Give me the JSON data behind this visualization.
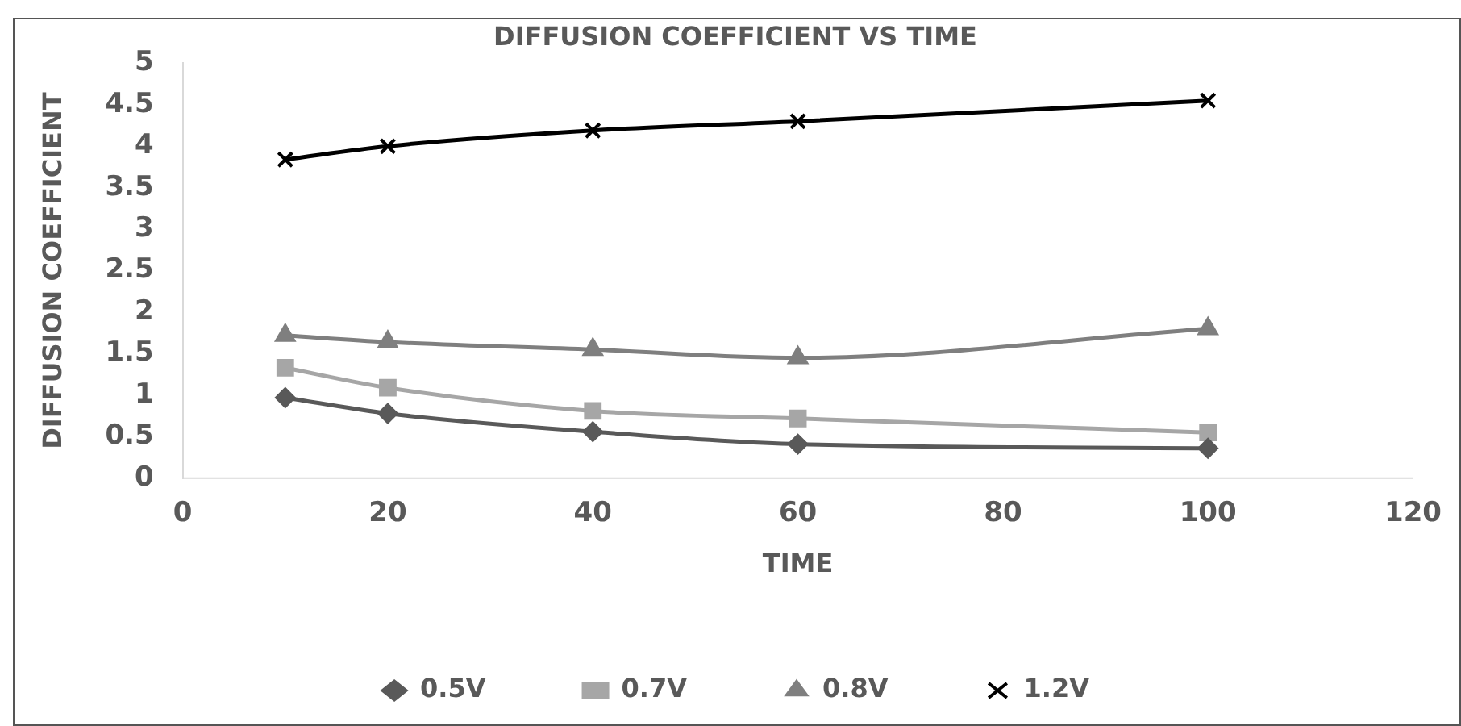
{
  "chart_data": {
    "type": "line",
    "title": "DIFFUSION COEFFICIENT VS TIME",
    "xlabel": "TIME",
    "ylabel": "DIFFUSION COEFFICIENT",
    "x": [
      10,
      20,
      40,
      60,
      100
    ],
    "series": [
      {
        "name": "0.5V",
        "color": "#595959",
        "marker": "diamond",
        "values": [
          0.97,
          0.78,
          0.56,
          0.41,
          0.36
        ]
      },
      {
        "name": "0.7V",
        "color": "#a6a6a6",
        "marker": "square",
        "values": [
          1.33,
          1.09,
          0.81,
          0.72,
          0.55
        ]
      },
      {
        "name": "0.8V",
        "color": "#7f7f7f",
        "marker": "triangle",
        "values": [
          1.72,
          1.64,
          1.55,
          1.45,
          1.8
        ]
      },
      {
        "name": "1.2V",
        "color": "#000000",
        "marker": "cross",
        "values": [
          3.84,
          4.0,
          4.19,
          4.3,
          4.55
        ]
      }
    ],
    "xlim": [
      0,
      120
    ],
    "xticks": [
      0,
      20,
      40,
      60,
      80,
      100,
      120
    ],
    "ylim": [
      0,
      5
    ],
    "yticks": [
      0,
      0.5,
      1,
      1.5,
      2,
      2.5,
      3,
      3.5,
      4,
      4.5,
      5
    ],
    "grid": false,
    "legend": "bottom",
    "line_style": "solid"
  }
}
